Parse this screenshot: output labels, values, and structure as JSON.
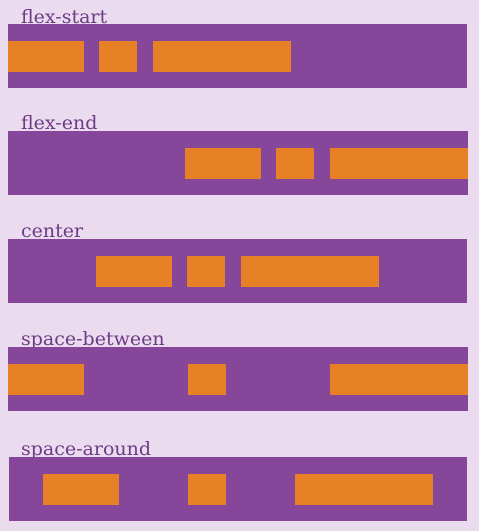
{
  "colors": {
    "page_background": "#eadcee",
    "container": "#86479a",
    "item": "#e88025",
    "label_text": "#6f3a86"
  },
  "demos": [
    {
      "label": "flex-start",
      "justify": "flex-start"
    },
    {
      "label": "flex-end",
      "justify": "flex-end"
    },
    {
      "label": "center",
      "justify": "center"
    },
    {
      "label": "space-between",
      "justify": "space-between"
    },
    {
      "label": "space-around",
      "justify": "space-around"
    }
  ]
}
